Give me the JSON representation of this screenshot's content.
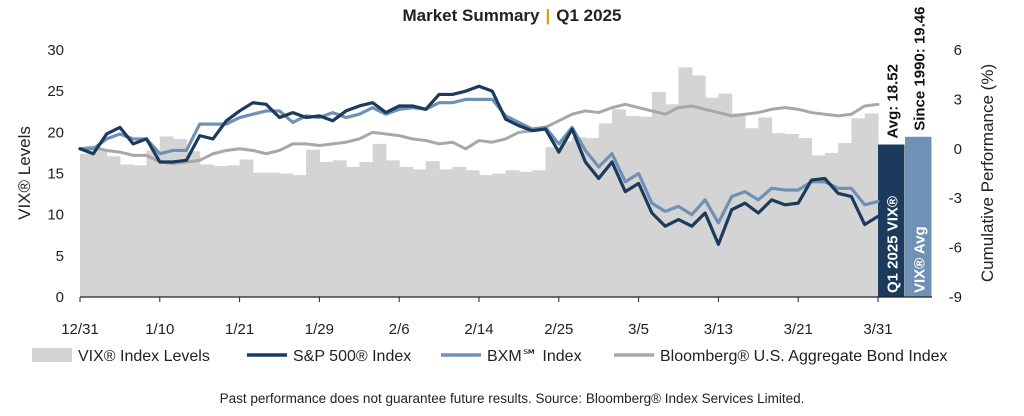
{
  "chart_data": {
    "type": "line",
    "title": "Market Summary",
    "title_separator": "|",
    "title_period": "Q1 2025",
    "y_left_label": "VIX® Levels",
    "y_right_label": "Cumulative Performance (%)",
    "y_left_ticks": [
      "0",
      "5",
      "10",
      "15",
      "20",
      "25",
      "30"
    ],
    "y_right_ticks": [
      "-9",
      "-6",
      "-3",
      "0",
      "3",
      "6"
    ],
    "y_left_range": [
      0,
      30
    ],
    "y_right_range": [
      -9,
      6
    ],
    "x_ticks": [
      "12/31",
      "1/10",
      "1/21",
      "1/29",
      "2/6",
      "2/14",
      "2/25",
      "3/5",
      "3/13",
      "3/21",
      "3/31"
    ],
    "grid": false,
    "legend_position": "bottom",
    "colors": {
      "vix": "#d4d4d4",
      "spx": "#1b3a5c",
      "bxm": "#6f91b5",
      "agg": "#a8a8a8",
      "avg_q1": "#1b3a5c",
      "avg_since": "#6f91b5",
      "title_accent": "#d4a017"
    },
    "series": [
      {
        "name": "VIX® Index Levels",
        "axis": "left",
        "style": "bar",
        "values": [
          17.4,
          17.9,
          17.1,
          16.1,
          16.0,
          17.8,
          19.5,
          19.2,
          17.7,
          16.1,
          15.9,
          16.0,
          16.7,
          15.1,
          15.1,
          15.0,
          14.8,
          17.9,
          16.4,
          16.6,
          15.8,
          16.4,
          18.6,
          16.6,
          15.8,
          15.5,
          16.5,
          15.5,
          15.8,
          15.4,
          14.8,
          15.0,
          15.4,
          15.2,
          15.4,
          18.2,
          18.9,
          19.4,
          19.3,
          21.1,
          22.8,
          22.0,
          21.9,
          24.9,
          23.4,
          27.9,
          26.9,
          24.2,
          24.7,
          22.3,
          20.5,
          21.8,
          19.9,
          19.8,
          19.3,
          17.2,
          17.5,
          18.7,
          21.7,
          22.3
        ]
      },
      {
        "name": "S&P 500® Index",
        "axis": "right",
        "style": "line",
        "values": [
          0.0,
          -0.3,
          0.9,
          1.3,
          0.3,
          0.6,
          -0.8,
          -0.8,
          -0.7,
          0.8,
          0.6,
          1.7,
          2.3,
          2.8,
          2.7,
          1.9,
          2.2,
          1.9,
          2.0,
          1.7,
          2.3,
          2.6,
          2.8,
          2.2,
          2.6,
          2.6,
          2.4,
          3.3,
          3.3,
          3.5,
          3.8,
          3.5,
          1.8,
          1.4,
          1.1,
          1.2,
          -0.2,
          1.2,
          -0.8,
          -1.8,
          -0.8,
          -2.6,
          -2.1,
          -3.9,
          -4.7,
          -4.3,
          -4.7,
          -3.9,
          -5.8,
          -3.7,
          -3.3,
          -3.9,
          -3.1,
          -3.4,
          -3.3,
          -1.9,
          -1.8,
          -2.7,
          -2.9,
          -4.6,
          -4.1
        ]
      },
      {
        "name": "BXM℠ Index",
        "axis": "right",
        "style": "line",
        "values": [
          0.0,
          0.0,
          0.6,
          0.9,
          0.6,
          0.6,
          -0.3,
          -0.1,
          -0.1,
          1.5,
          1.5,
          1.5,
          1.9,
          2.1,
          2.3,
          2.3,
          1.6,
          2.0,
          1.9,
          2.2,
          1.9,
          2.1,
          2.5,
          2.1,
          2.4,
          2.5,
          2.4,
          2.8,
          2.8,
          3.0,
          3.0,
          3.0,
          2.0,
          1.6,
          1.2,
          1.3,
          0.3,
          1.3,
          -0.1,
          -1.1,
          -0.3,
          -2.0,
          -1.5,
          -3.3,
          -3.8,
          -3.5,
          -4.0,
          -3.1,
          -4.5,
          -2.9,
          -2.6,
          -3.1,
          -2.4,
          -2.5,
          -2.5,
          -2.0,
          -2.0,
          -2.4,
          -2.4,
          -3.4,
          -3.2
        ]
      },
      {
        "name": "Bloomberg® U.S. Aggregate Bond Index",
        "axis": "right",
        "style": "line",
        "values": [
          0.0,
          0.1,
          -0.1,
          -0.2,
          -0.4,
          -0.4,
          -0.8,
          -0.9,
          -0.8,
          -0.7,
          -0.3,
          -0.1,
          0.0,
          -0.1,
          -0.3,
          -0.1,
          0.3,
          0.3,
          0.2,
          0.3,
          0.4,
          0.6,
          1.0,
          0.9,
          0.8,
          0.6,
          0.5,
          0.3,
          0.4,
          0.0,
          0.5,
          0.4,
          0.6,
          1.0,
          1.1,
          1.3,
          1.7,
          2.1,
          2.3,
          2.2,
          2.5,
          2.7,
          2.5,
          2.3,
          2.1,
          2.5,
          2.6,
          2.4,
          2.2,
          2.0,
          2.1,
          2.2,
          2.4,
          2.5,
          2.4,
          2.2,
          2.1,
          2.0,
          2.1,
          2.6,
          2.7
        ]
      }
    ],
    "avg_bars": [
      {
        "label": "Q1 2025 VIX® Avg: 18.52",
        "value": 18.52
      },
      {
        "label": "VIX® Avg Since 1990: 19.46",
        "value": 19.46
      }
    ],
    "footnote": "Past performance does not guarantee future results. Source: Bloomberg® Index Services Limited."
  }
}
